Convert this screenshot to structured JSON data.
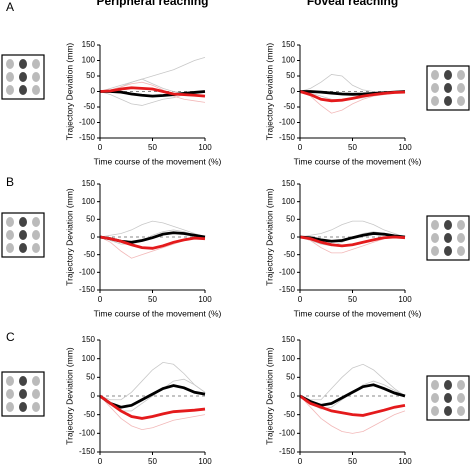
{
  "chart_data": [
    {
      "type": "line",
      "panel_label": "A",
      "title": "Peripheral reaching",
      "ylabel": "Trajectory Deviation (mm)",
      "xlabel": "Time course of the movement (%)",
      "x": [
        0,
        10,
        20,
        30,
        40,
        50,
        60,
        70,
        80,
        90,
        100
      ],
      "xlim": [
        0,
        100
      ],
      "xticks": [
        0,
        50,
        100
      ],
      "ylim": [
        -150,
        150
      ],
      "yticks": [
        -150,
        -100,
        -50,
        0,
        50,
        100,
        150
      ],
      "series": [
        {
          "color": "#c8c8c8",
          "values": [
            0,
            5,
            15,
            30,
            40,
            25,
            10,
            0,
            -5,
            -10,
            -15
          ]
        },
        {
          "color": "#c8c8c8",
          "values": [
            0,
            -10,
            -25,
            -40,
            -45,
            -35,
            -25,
            -20,
            -10,
            -5,
            0
          ]
        },
        {
          "color": "#c8c8c8",
          "values": [
            0,
            10,
            20,
            30,
            40,
            50,
            60,
            70,
            85,
            100,
            110
          ]
        },
        {
          "color": "#f2b8b8",
          "values": [
            0,
            5,
            15,
            25,
            30,
            20,
            5,
            -15,
            -25,
            -30,
            -35
          ]
        },
        {
          "color": "#000000",
          "values": [
            0,
            0,
            -2,
            -8,
            -12,
            -15,
            -13,
            -10,
            -6,
            -3,
            0
          ]
        },
        {
          "color": "#e41a1c",
          "values": [
            0,
            2,
            8,
            12,
            10,
            8,
            0,
            -8,
            -10,
            -12,
            -15
          ]
        }
      ]
    },
    {
      "type": "line",
      "title": "Foveal reaching",
      "ylabel": "Trajectory Deviation (mm)",
      "xlabel": "Time course of the movement (%)",
      "x": [
        0,
        10,
        20,
        30,
        40,
        50,
        60,
        70,
        80,
        90,
        100
      ],
      "xlim": [
        0,
        100
      ],
      "xticks": [
        0,
        50,
        100
      ],
      "ylim": [
        -150,
        150
      ],
      "yticks": [
        -150,
        -100,
        -50,
        0,
        50,
        100,
        150
      ],
      "series": [
        {
          "color": "#c8c8c8",
          "values": [
            0,
            10,
            30,
            55,
            50,
            20,
            5,
            0,
            -5,
            -5,
            0
          ]
        },
        {
          "color": "#c8c8c8",
          "values": [
            0,
            -5,
            -15,
            -25,
            -30,
            -25,
            -20,
            -12,
            -8,
            -4,
            0
          ]
        },
        {
          "color": "#f2b8b8",
          "values": [
            0,
            -15,
            -45,
            -70,
            -60,
            -40,
            -25,
            -15,
            -10,
            -5,
            0
          ]
        },
        {
          "color": "#000000",
          "values": [
            0,
            0,
            -2,
            -5,
            -8,
            -9,
            -8,
            -6,
            -4,
            -2,
            0
          ]
        },
        {
          "color": "#e41a1c",
          "values": [
            0,
            -10,
            -25,
            -30,
            -28,
            -22,
            -15,
            -10,
            -6,
            -3,
            -2
          ]
        }
      ]
    },
    {
      "type": "line",
      "panel_label": "B",
      "ylabel": "Trajectory Deviation (mm)",
      "xlabel": "Time course of the movement (%)",
      "x": [
        0,
        10,
        20,
        30,
        40,
        50,
        60,
        70,
        80,
        90,
        100
      ],
      "xlim": [
        0,
        100
      ],
      "xticks": [
        0,
        50,
        100
      ],
      "ylim": [
        -150,
        150
      ],
      "yticks": [
        -150,
        -100,
        -50,
        0,
        50,
        100,
        150
      ],
      "series": [
        {
          "color": "#c8c8c8",
          "values": [
            0,
            5,
            10,
            20,
            35,
            45,
            40,
            30,
            20,
            10,
            0
          ]
        },
        {
          "color": "#c8c8c8",
          "values": [
            0,
            -10,
            -20,
            -20,
            -10,
            5,
            15,
            20,
            15,
            5,
            0
          ]
        },
        {
          "color": "#f2b8b8",
          "values": [
            0,
            -15,
            -40,
            -60,
            -50,
            -40,
            -30,
            -20,
            -10,
            -5,
            0
          ]
        },
        {
          "color": "#000000",
          "values": [
            0,
            -5,
            -12,
            -15,
            -10,
            -2,
            8,
            12,
            10,
            5,
            0
          ]
        },
        {
          "color": "#e41a1c",
          "values": [
            0,
            -5,
            -12,
            -22,
            -30,
            -32,
            -25,
            -15,
            -8,
            -3,
            -5
          ]
        }
      ]
    },
    {
      "type": "line",
      "ylabel": "Trajectory Deviation (mm)",
      "xlabel": "Time course of the movement (%)",
      "x": [
        0,
        10,
        20,
        30,
        40,
        50,
        60,
        70,
        80,
        90,
        100
      ],
      "xlim": [
        0,
        100
      ],
      "xticks": [
        0,
        50,
        100
      ],
      "ylim": [
        -150,
        150
      ],
      "yticks": [
        -150,
        -100,
        -50,
        0,
        50,
        100,
        150
      ],
      "series": [
        {
          "color": "#c8c8c8",
          "values": [
            0,
            5,
            10,
            20,
            35,
            45,
            45,
            35,
            20,
            10,
            0
          ]
        },
        {
          "color": "#c8c8c8",
          "values": [
            0,
            -10,
            -20,
            -25,
            -15,
            0,
            10,
            15,
            10,
            5,
            0
          ]
        },
        {
          "color": "#f2b8b8",
          "values": [
            0,
            -10,
            -30,
            -45,
            -45,
            -35,
            -25,
            -15,
            -5,
            0,
            0
          ]
        },
        {
          "color": "#000000",
          "values": [
            0,
            -2,
            -8,
            -12,
            -10,
            -2,
            5,
            10,
            8,
            3,
            0
          ]
        },
        {
          "color": "#e41a1c",
          "values": [
            0,
            -5,
            -15,
            -22,
            -25,
            -22,
            -15,
            -8,
            -2,
            0,
            -2
          ]
        }
      ]
    },
    {
      "type": "line",
      "panel_label": "C",
      "ylabel": "Trajectory Deviation (mm)",
      "x": [
        0,
        10,
        20,
        30,
        40,
        50,
        60,
        70,
        80,
        90,
        100
      ],
      "xlim": [
        0,
        100
      ],
      "xticks": [
        0,
        50,
        100
      ],
      "ylim": [
        -150,
        150
      ],
      "yticks": [
        -150,
        -100,
        -50,
        0,
        50,
        100,
        150
      ],
      "series": [
        {
          "color": "#c8c8c8",
          "values": [
            0,
            -10,
            -10,
            10,
            40,
            70,
            90,
            85,
            60,
            30,
            10
          ]
        },
        {
          "color": "#c8c8c8",
          "values": [
            0,
            -20,
            -40,
            -40,
            -20,
            0,
            20,
            40,
            45,
            30,
            10
          ]
        },
        {
          "color": "#f2b8b8",
          "values": [
            0,
            -30,
            -60,
            -80,
            -90,
            -85,
            -75,
            -65,
            -60,
            -55,
            -50
          ]
        },
        {
          "color": "#000000",
          "values": [
            0,
            -20,
            -30,
            -25,
            -10,
            5,
            20,
            28,
            22,
            10,
            5
          ]
        },
        {
          "color": "#e41a1c",
          "values": [
            0,
            -20,
            -40,
            -55,
            -60,
            -55,
            -48,
            -42,
            -40,
            -38,
            -35
          ]
        }
      ]
    },
    {
      "type": "line",
      "ylabel": "Trajectory Deviation (mm)",
      "x": [
        0,
        10,
        20,
        30,
        40,
        50,
        60,
        70,
        80,
        90,
        100
      ],
      "xlim": [
        0,
        100
      ],
      "xticks": [
        0,
        50,
        100
      ],
      "ylim": [
        -150,
        150
      ],
      "yticks": [
        -150,
        -100,
        -50,
        0,
        50,
        100,
        150
      ],
      "series": [
        {
          "color": "#c8c8c8",
          "values": [
            0,
            -10,
            -10,
            20,
            50,
            75,
            85,
            70,
            45,
            20,
            0
          ]
        },
        {
          "color": "#c8c8c8",
          "values": [
            0,
            -20,
            -35,
            -30,
            -10,
            10,
            30,
            40,
            30,
            15,
            0
          ]
        },
        {
          "color": "#f2b8b8",
          "values": [
            0,
            -30,
            -60,
            -80,
            -95,
            -100,
            -95,
            -80,
            -65,
            -50,
            -40
          ]
        },
        {
          "color": "#000000",
          "values": [
            0,
            -15,
            -25,
            -20,
            -5,
            10,
            25,
            30,
            20,
            8,
            0
          ]
        },
        {
          "color": "#e41a1c",
          "values": [
            0,
            -20,
            -30,
            -40,
            -45,
            -50,
            -52,
            -45,
            -38,
            -30,
            -25
          ]
        }
      ]
    }
  ]
}
